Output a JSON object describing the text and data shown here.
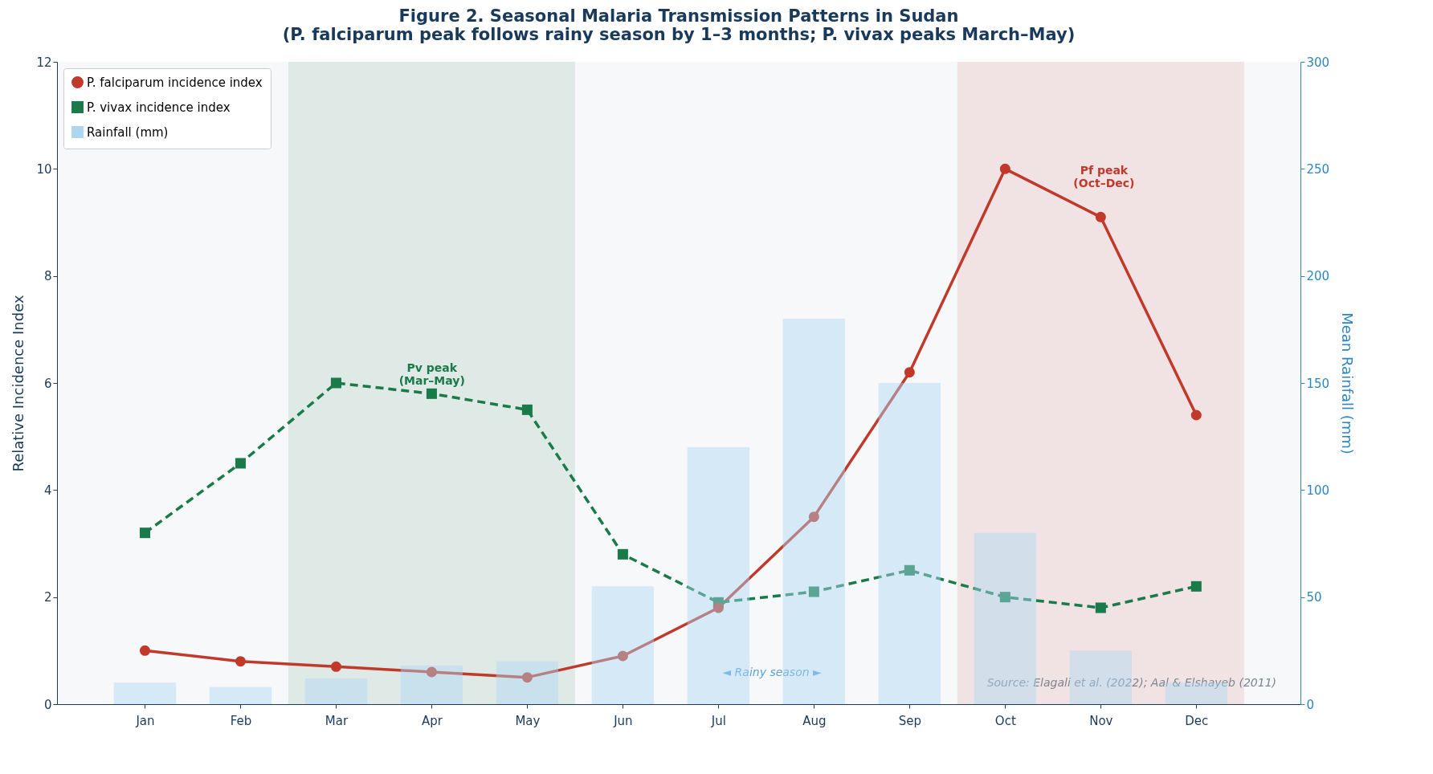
{
  "chart_data": {
    "type": "line",
    "title": "Figure 2. Seasonal Malaria Transmission Patterns in Sudan\n(P. falciparum peak follows rainy season by 1–3 months; P. vivax peaks March–May)",
    "ylabel": "Relative Incidence Index",
    "y2label": "Mean Rainfall (mm)",
    "categories": [
      "Jan",
      "Feb",
      "Mar",
      "Apr",
      "May",
      "Jun",
      "Jul",
      "Aug",
      "Sep",
      "Oct",
      "Nov",
      "Dec"
    ],
    "series": [
      {
        "name": "P. falciparum incidence index",
        "color": "#c0392b",
        "marker": "circle",
        "line_style": "solid",
        "values": [
          1.0,
          0.8,
          0.7,
          0.6,
          0.5,
          0.9,
          1.8,
          3.5,
          6.2,
          10.0,
          9.1,
          5.4
        ]
      },
      {
        "name": "P. vivax incidence index",
        "color": "#1a7a4a",
        "marker": "square",
        "line_style": "dashed",
        "values": [
          3.2,
          4.5,
          6.0,
          5.8,
          5.5,
          2.8,
          1.9,
          2.1,
          2.5,
          2.0,
          1.8,
          2.2
        ]
      },
      {
        "name": "Rainfall (mm)",
        "type": "bar",
        "axis": "y2",
        "color": "#aed6f1",
        "values": [
          10,
          8,
          12,
          18,
          20,
          55,
          120,
          180,
          150,
          80,
          25,
          10
        ]
      }
    ],
    "ylim": [
      0,
      12
    ],
    "yticks": [
      0,
      2,
      4,
      6,
      8,
      10,
      12
    ],
    "y2lim": [
      0,
      300
    ],
    "y2ticks": [
      0,
      50,
      100,
      150,
      200,
      250,
      300
    ],
    "bands": [
      {
        "axis": "x",
        "from": "Mar",
        "to": "May",
        "color": "#1a7a4a"
      },
      {
        "axis": "x",
        "from": "Oct",
        "to": "Dec",
        "color": "#c0392b"
      }
    ],
    "annotations": [
      "Pv peak\n(Mar–May)",
      "Pf peak\n(Oct–Dec)",
      "◄ Rainy season ►",
      "Source: Elagali et al. (2022); Aal & Elshayeb (2011)"
    ],
    "grid": false,
    "legend": "top left"
  }
}
